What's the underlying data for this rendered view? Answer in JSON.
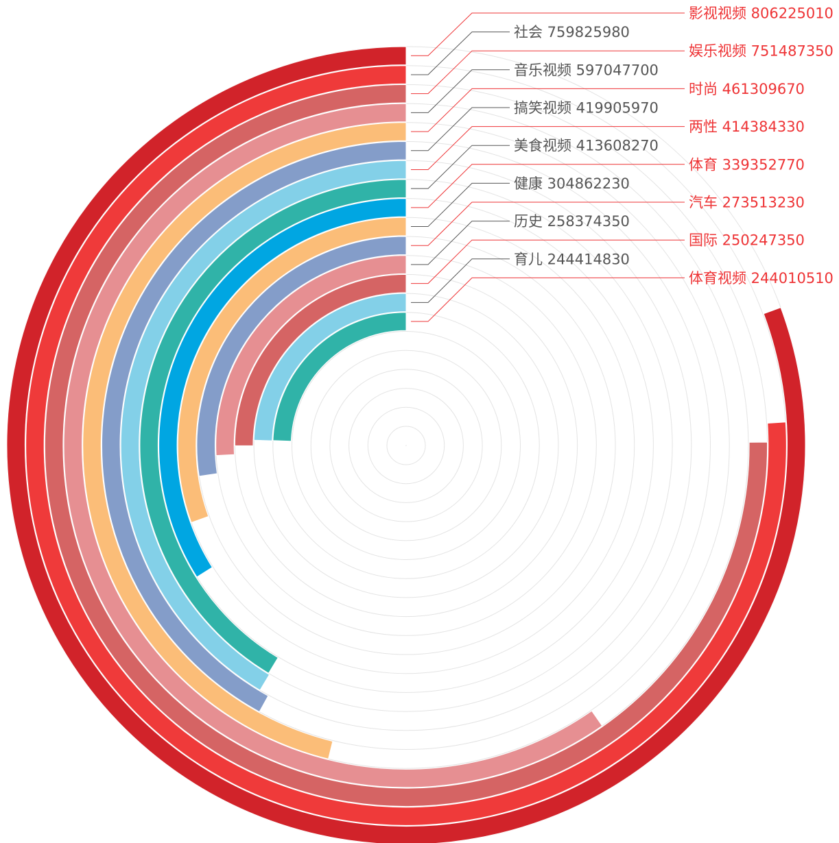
{
  "chart_data": {
    "type": "radial-bar",
    "title": "",
    "max_value": 1000000000,
    "categories": [
      "影视视频",
      "社会",
      "娱乐视频",
      "音乐视频",
      "时尚",
      "搞笑视频",
      "两性",
      "美食视频",
      "体育",
      "健康",
      "汽车",
      "历史",
      "国际",
      "育儿",
      "体育视频"
    ],
    "values": [
      806225010,
      759825980,
      751487350,
      597047700,
      461309670,
      419905970,
      414384330,
      413608270,
      339352770,
      304862230,
      273513230,
      258374350,
      250247350,
      244414830,
      244010510
    ],
    "labels": [
      "影视视频 806225010",
      "社会 759825980",
      "娱乐视频 751487350",
      "音乐视频 597047700",
      "时尚 461309670",
      "搞笑视频 419905970",
      "两性 414384330",
      "美食视频 413608270",
      "体育 339352770",
      "健康 304862230",
      "汽车 273513230",
      "历史 258374350",
      "国际 250247350",
      "育儿 244414830",
      "体育视频 244010510"
    ],
    "colors": [
      "#d1232a",
      "#ef3a3a",
      "#d56464",
      "#e68f92",
      "#fbbd78",
      "#849dc9",
      "#83d0e8",
      "#30b3a8",
      "#00a6e2",
      "#fbbd78",
      "#849dc9",
      "#e68f92",
      "#d56464",
      "#83d0e8",
      "#30b3a8"
    ],
    "label_colors": [
      "#ee3335",
      "#555555"
    ],
    "grid": true,
    "grid_color": "#e3e3e3"
  }
}
